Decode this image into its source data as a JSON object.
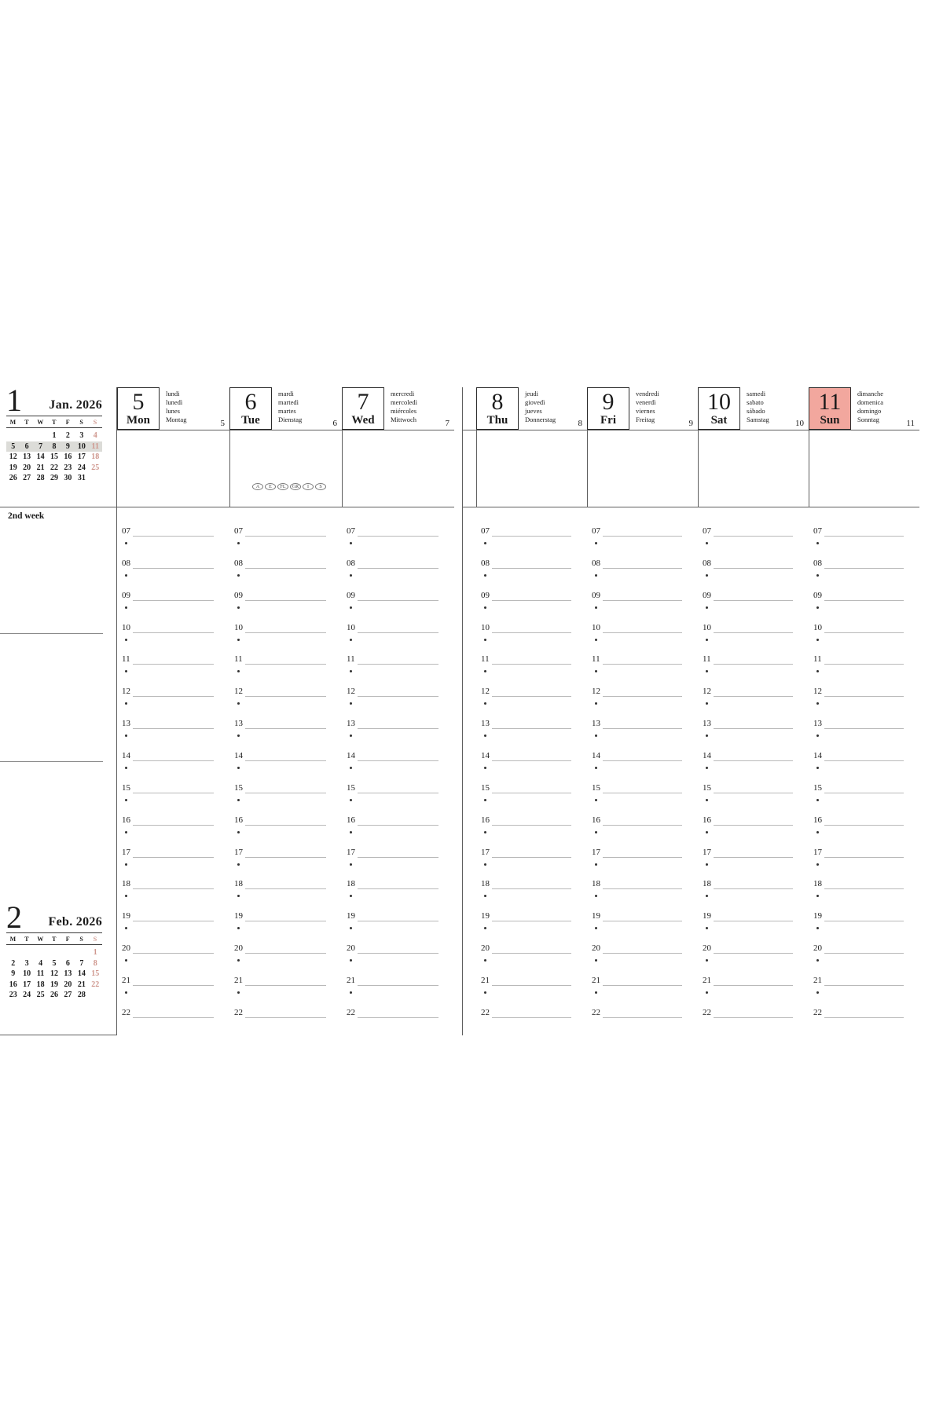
{
  "colors": {
    "sunday_box_bg": "#f2a79e",
    "sunday_text": "#cf978e",
    "week_highlight_bg": "#dcdcd8",
    "hour_line": "#b9b9b9",
    "frame_line": "#5f5f5f",
    "text": "#1c1c1c"
  },
  "sidebar": {
    "week_label": "2nd week",
    "jan": {
      "month_number": "1",
      "title": "Jan. 2026",
      "weekdays": [
        "M",
        "T",
        "W",
        "T",
        "F",
        "S",
        "S"
      ],
      "highlight_week": 1,
      "weeks": [
        [
          "",
          "",
          "",
          "1",
          "2",
          "3",
          "4"
        ],
        [
          "5",
          "6",
          "7",
          "8",
          "9",
          "10",
          "11"
        ],
        [
          "12",
          "13",
          "14",
          "15",
          "16",
          "17",
          "18"
        ],
        [
          "19",
          "20",
          "21",
          "22",
          "23",
          "24",
          "25"
        ],
        [
          "26",
          "27",
          "28",
          "29",
          "30",
          "31",
          ""
        ]
      ]
    },
    "feb": {
      "month_number": "2",
      "title": "Feb. 2026",
      "weekdays": [
        "M",
        "T",
        "W",
        "T",
        "F",
        "S",
        "S"
      ],
      "highlight_week": -1,
      "weeks": [
        [
          "",
          "",
          "",
          "",
          "",
          "",
          "1"
        ],
        [
          "2",
          "3",
          "4",
          "5",
          "6",
          "7",
          "8"
        ],
        [
          "9",
          "10",
          "11",
          "12",
          "13",
          "14",
          "15"
        ],
        [
          "16",
          "17",
          "18",
          "19",
          "20",
          "21",
          "22"
        ],
        [
          "23",
          "24",
          "25",
          "26",
          "27",
          "28",
          ""
        ]
      ]
    }
  },
  "week": {
    "hours": [
      "07",
      "08",
      "09",
      "10",
      "11",
      "12",
      "13",
      "14",
      "15",
      "16",
      "17",
      "18",
      "19",
      "20",
      "21",
      "22"
    ],
    "days": [
      {
        "number": "5",
        "abbr": "Mon",
        "names": [
          "lundi",
          "lunedì",
          "lunes",
          "Montag"
        ],
        "corner_number": "5",
        "is_sunday": false
      },
      {
        "number": "6",
        "abbr": "Tue",
        "names": [
          "mardi",
          "martedì",
          "martes",
          "Dienstag"
        ],
        "corner_number": "6",
        "is_sunday": false,
        "holiday_badges": [
          "A",
          "E",
          "FL",
          "GR",
          "I",
          "S"
        ]
      },
      {
        "number": "7",
        "abbr": "Wed",
        "names": [
          "mercredi",
          "mercoledì",
          "miércoles",
          "Mittwoch"
        ],
        "corner_number": "7",
        "is_sunday": false
      },
      {
        "number": "8",
        "abbr": "Thu",
        "names": [
          "jeudi",
          "giovedì",
          "jueves",
          "Donnerstag"
        ],
        "corner_number": "8",
        "is_sunday": false
      },
      {
        "number": "9",
        "abbr": "Fri",
        "names": [
          "vendredi",
          "venerdì",
          "viernes",
          "Freitag"
        ],
        "corner_number": "9",
        "is_sunday": false
      },
      {
        "number": "10",
        "abbr": "Sat",
        "names": [
          "samedi",
          "sabato",
          "sábado",
          "Samstag"
        ],
        "corner_number": "10",
        "is_sunday": false
      },
      {
        "number": "11",
        "abbr": "Sun",
        "names": [
          "dimanche",
          "domenica",
          "domingo",
          "Sonntag"
        ],
        "corner_number": "11",
        "is_sunday": true
      }
    ]
  }
}
